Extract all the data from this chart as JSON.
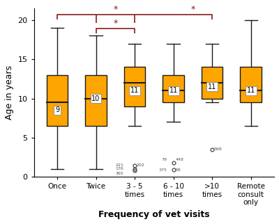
{
  "categories": [
    "Once",
    "Twice",
    "3 - 5\ntimes",
    "6 - 10\ntimes",
    ">10\ntimes",
    "Remote\nconsult\nonly"
  ],
  "box_data": [
    {
      "q1": 6.5,
      "median": 9.5,
      "q3": 13.0,
      "whisker_low": 1.0,
      "whisker_high": 19.0,
      "mean": 8.5,
      "mean_label": "9",
      "outliers": []
    },
    {
      "q1": 6.5,
      "median": 10.0,
      "q3": 13.0,
      "whisker_low": 1.0,
      "whisker_high": 18.0,
      "mean": 10.0,
      "mean_label": "10",
      "outliers": []
    },
    {
      "q1": 9.0,
      "median": 12.0,
      "q3": 14.0,
      "whisker_low": 6.5,
      "whisker_high": 17.0,
      "mean": 11.0,
      "mean_label": "11",
      "outliers": [
        1.0,
        0.8,
        1.4
      ]
    },
    {
      "q1": 9.5,
      "median": 11.0,
      "q3": 13.0,
      "whisker_low": 7.0,
      "whisker_high": 17.0,
      "mean": 11.0,
      "mean_label": "11",
      "outliers": [
        1.8,
        0.9
      ]
    },
    {
      "q1": 10.0,
      "median": 12.0,
      "q3": 14.0,
      "whisker_low": 9.5,
      "whisker_high": 17.0,
      "mean": 11.5,
      "mean_label": "11",
      "outliers": [
        3.5
      ]
    },
    {
      "q1": 9.5,
      "median": 11.0,
      "q3": 14.0,
      "whisker_low": 6.5,
      "whisker_high": 20.0,
      "mean": 11.0,
      "mean_label": "11",
      "outliers": []
    }
  ],
  "box_color": "#FFA500",
  "box_edge_color": "#1a1a1a",
  "median_color": "#1a1a1a",
  "whisker_color": "#1a1a1a",
  "outlier_color": "#555555",
  "mean_box_facecolor": "#ffffff",
  "mean_box_edgecolor": "#888888",
  "mean_text_color": "#000000",
  "ylabel": "Age in years",
  "xlabel": "Frequency of vet visits",
  "ylim": [
    0,
    21.5
  ],
  "yticks": [
    0,
    5,
    10,
    15,
    20
  ],
  "sig_color": "#8B1A1A",
  "box_width": 0.55,
  "cap_ratio": 0.3
}
